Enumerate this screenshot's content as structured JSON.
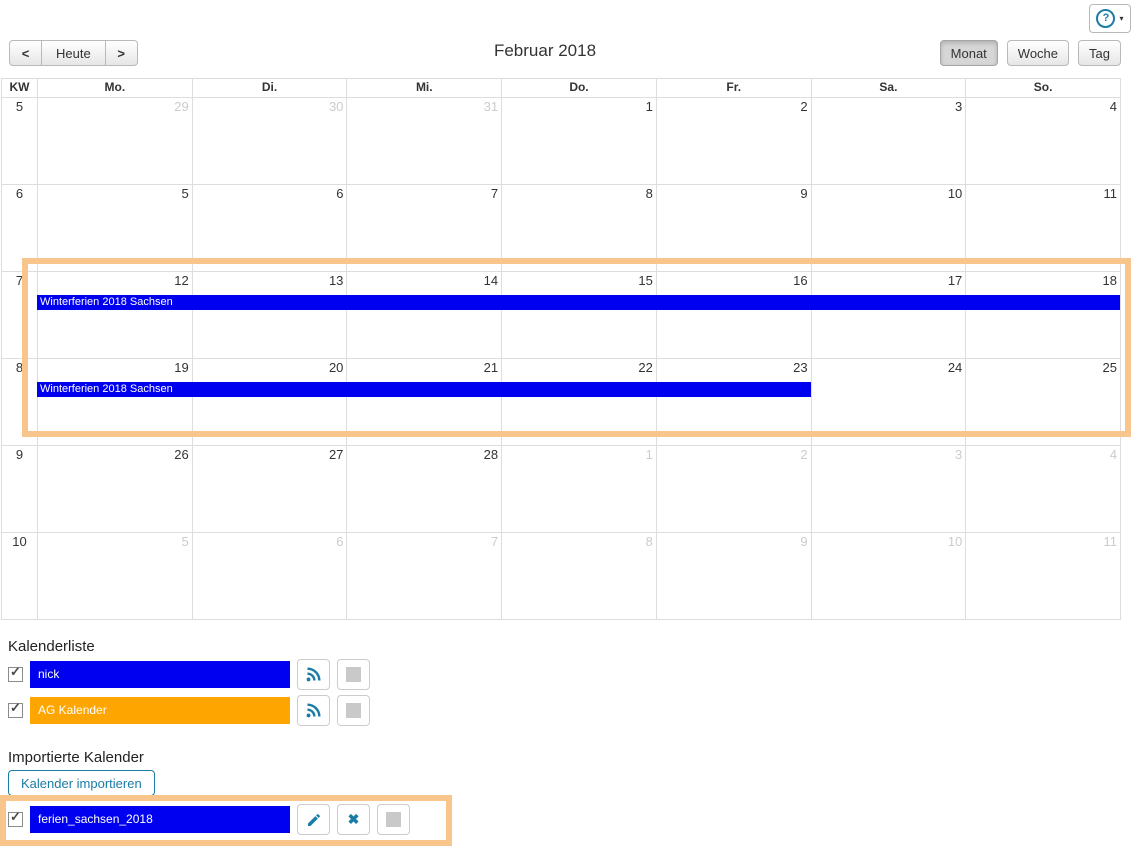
{
  "colors": {
    "accent": "#1b7ca6",
    "event": "#0000f0",
    "orange_bar": "#ffa500",
    "highlight": "#f8c58c"
  },
  "icons": {
    "help": "?",
    "caret": "▾",
    "prev": "<",
    "next": ">",
    "check": "✓",
    "delete": "✖"
  },
  "toolbar": {
    "prev_label": "<",
    "today_label": "Heute",
    "next_label": ">",
    "title": "Februar 2018",
    "views": [
      {
        "label": "Monat",
        "active": true
      },
      {
        "label": "Woche",
        "active": false
      },
      {
        "label": "Tag",
        "active": false
      }
    ]
  },
  "calendar": {
    "kw_header": "KW",
    "day_headers": [
      "Mo.",
      "Di.",
      "Mi.",
      "Do.",
      "Fr.",
      "Sa.",
      "So."
    ],
    "weeks": [
      {
        "kw": "5",
        "days": [
          {
            "n": "29",
            "muted": true
          },
          {
            "n": "30",
            "muted": true
          },
          {
            "n": "31",
            "muted": true
          },
          {
            "n": "1"
          },
          {
            "n": "2"
          },
          {
            "n": "3"
          },
          {
            "n": "4"
          }
        ],
        "events": []
      },
      {
        "kw": "6",
        "days": [
          {
            "n": "5"
          },
          {
            "n": "6"
          },
          {
            "n": "7"
          },
          {
            "n": "8"
          },
          {
            "n": "9"
          },
          {
            "n": "10"
          },
          {
            "n": "11"
          }
        ],
        "events": []
      },
      {
        "kw": "7",
        "days": [
          {
            "n": "12"
          },
          {
            "n": "13"
          },
          {
            "n": "14"
          },
          {
            "n": "15"
          },
          {
            "n": "16"
          },
          {
            "n": "17"
          },
          {
            "n": "18"
          }
        ],
        "events": [
          {
            "label": "Winterferien 2018 Sachsen",
            "start": 0,
            "span": 7
          }
        ]
      },
      {
        "kw": "8",
        "days": [
          {
            "n": "19"
          },
          {
            "n": "20"
          },
          {
            "n": "21"
          },
          {
            "n": "22"
          },
          {
            "n": "23"
          },
          {
            "n": "24"
          },
          {
            "n": "25"
          }
        ],
        "events": [
          {
            "label": "Winterferien 2018 Sachsen",
            "start": 0,
            "span": 5
          }
        ]
      },
      {
        "kw": "9",
        "days": [
          {
            "n": "26"
          },
          {
            "n": "27"
          },
          {
            "n": "28"
          },
          {
            "n": "1",
            "muted": true
          },
          {
            "n": "2",
            "muted": true
          },
          {
            "n": "3",
            "muted": true
          },
          {
            "n": "4",
            "muted": true
          }
        ],
        "events": []
      },
      {
        "kw": "10",
        "days": [
          {
            "n": "5",
            "muted": true
          },
          {
            "n": "6",
            "muted": true
          },
          {
            "n": "7",
            "muted": true
          },
          {
            "n": "8",
            "muted": true
          },
          {
            "n": "9",
            "muted": true
          },
          {
            "n": "10",
            "muted": true
          },
          {
            "n": "11",
            "muted": true
          }
        ],
        "events": []
      }
    ]
  },
  "calendar_list": {
    "heading": "Kalenderliste",
    "items": [
      {
        "name": "nick",
        "color": "#0000f0",
        "checked": true,
        "actions": [
          "rss",
          "color"
        ]
      },
      {
        "name": "AG Kalender",
        "color": "#ffa500",
        "checked": true,
        "actions": [
          "rss",
          "color"
        ]
      }
    ]
  },
  "imported": {
    "heading": "Importierte Kalender",
    "import_button": "Kalender importieren",
    "items": [
      {
        "name": "ferien_sachsen_2018",
        "color": "#0000f0",
        "checked": true,
        "actions": [
          "edit",
          "delete",
          "color"
        ]
      }
    ]
  }
}
